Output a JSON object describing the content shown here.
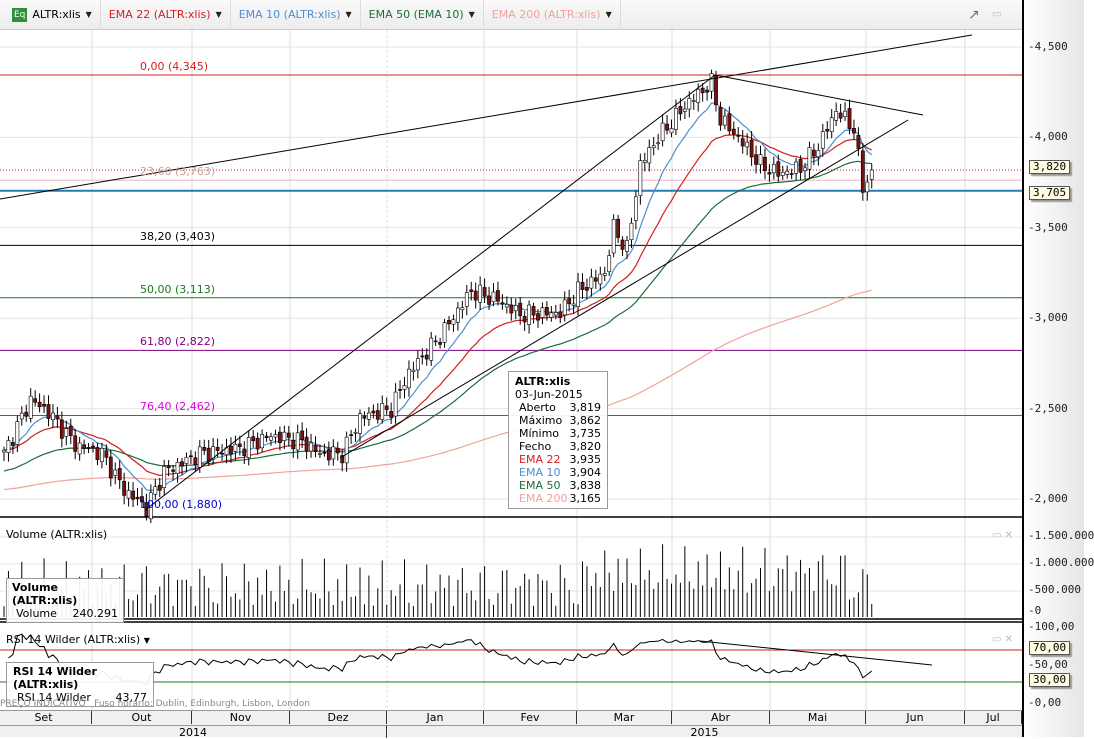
{
  "toolbar": {
    "symbol": "ALTR:xlis",
    "legends": [
      {
        "label": "EMA 22 (ALTR:xlis)",
        "color": "#d21f1f"
      },
      {
        "label": "EMA 10 (ALTR:xlis)",
        "color": "#4a8fcf"
      },
      {
        "label": "EMA 50 (EMA 10)",
        "color": "#1d6b3a"
      },
      {
        "label": "EMA 200 (ALTR:xlis)",
        "color": "#f0a39a"
      }
    ]
  },
  "fibonacci": [
    {
      "label": "0,00 (4,345)",
      "value": 4345,
      "color": "#d21f1f"
    },
    {
      "label": "23,60 (3,763)",
      "value": 3763,
      "color": "#e8b8b8"
    },
    {
      "label": "38,20 (3,403)",
      "value": 3403,
      "color": "#000000"
    },
    {
      "label": "50,00 (3,113)",
      "value": 3113,
      "color": "#1a7a1a"
    },
    {
      "label": "61,80 (2,822)",
      "value": 2822,
      "color": "#800080"
    },
    {
      "label": "76,40 (2,462)",
      "value": 2462,
      "color": "#e000e0"
    },
    {
      "label": "100,00 (1,880)",
      "value": 1880,
      "color": "#0000cc"
    }
  ],
  "price_axis": {
    "ticks": [
      "4,500",
      "4,000",
      "3,500",
      "3,000",
      "2,500",
      "2,000"
    ],
    "tick_values": [
      4500,
      4000,
      3500,
      3000,
      2500,
      2000
    ],
    "last_price": "3,820",
    "hline": "3,705"
  },
  "tooltip": {
    "title": "ALTR:xlis",
    "date": "03-Jun-2015",
    "rows": [
      {
        "k": "Aberto",
        "v": "3,819",
        "c": "#000"
      },
      {
        "k": "Máximo",
        "v": "3,862",
        "c": "#000"
      },
      {
        "k": "Mínimo",
        "v": "3,735",
        "c": "#000"
      },
      {
        "k": "Fecho",
        "v": "3,820",
        "c": "#000"
      },
      {
        "k": "EMA 22",
        "v": "3,935",
        "c": "#d21f1f"
      },
      {
        "k": "EMA 10",
        "v": "3,904",
        "c": "#4a8fcf"
      },
      {
        "k": " EMA 50",
        "v": "3,838",
        "c": "#1d6b3a"
      },
      {
        "k": "EMA 200",
        "v": "3,165",
        "c": "#f0a39a"
      }
    ]
  },
  "volume": {
    "title": "Volume (ALTR:xlis)",
    "box_title": "Volume (ALTR:xlis)",
    "label": "Volume",
    "value": "240.291",
    "ticks": [
      "1.500.000",
      "1.000.000",
      "500.000",
      "0"
    ]
  },
  "rsi": {
    "title": "RSI 14 Wilder (ALTR:xlis)",
    "box_title": "RSI 14 Wilder (ALTR:xlis)",
    "label": "RSI 14 Wilder",
    "value": "43,77",
    "ticks": [
      "100,00",
      "50,00",
      "0,00"
    ],
    "upper": "70,00",
    "lower": "30,00"
  },
  "footer": {
    "indicative": "PREÇO INDICATIVO",
    "timezone": "Fuso horário: Dublin, Edinburgh, Lisbon, London"
  },
  "months": [
    "Set",
    "Out",
    "Nov",
    "Dez",
    "Jan",
    "Fev",
    "Mar",
    "Abr",
    "Mai",
    "Jun",
    "Jul"
  ],
  "years": [
    "2014",
    "2015"
  ],
  "chart_data": {
    "type": "candlestick",
    "symbol": "ALTR:xlis",
    "close_keypoints": [
      [
        0,
        2250
      ],
      [
        6,
        2550
      ],
      [
        10,
        2480
      ],
      [
        16,
        2300
      ],
      [
        22,
        2250
      ],
      [
        27,
        2050
      ],
      [
        32,
        1950
      ],
      [
        36,
        2150
      ],
      [
        44,
        2250
      ],
      [
        53,
        2280
      ],
      [
        60,
        2350
      ],
      [
        67,
        2320
      ],
      [
        71,
        2250
      ],
      [
        76,
        2250
      ],
      [
        80,
        2450
      ],
      [
        87,
        2500
      ],
      [
        91,
        2700
      ],
      [
        98,
        2900
      ],
      [
        105,
        3150
      ],
      [
        111,
        3100
      ],
      [
        116,
        3020
      ],
      [
        125,
        3030
      ],
      [
        129,
        3150
      ],
      [
        135,
        3250
      ],
      [
        137,
        3500
      ],
      [
        140,
        3380
      ],
      [
        143,
        3850
      ],
      [
        147,
        4000
      ],
      [
        154,
        4200
      ],
      [
        159,
        4300
      ],
      [
        161,
        4100
      ],
      [
        165,
        4000
      ],
      [
        170,
        3850
      ],
      [
        174,
        3800
      ],
      [
        179,
        3830
      ],
      [
        183,
        3950
      ],
      [
        187,
        4150
      ],
      [
        191,
        4050
      ],
      [
        193,
        3720
      ],
      [
        195,
        3820
      ]
    ],
    "ylim": [
      1880,
      4600
    ],
    "volume_ylim": [
      0,
      1800000
    ],
    "rsi_ylim": [
      0,
      100
    ]
  }
}
